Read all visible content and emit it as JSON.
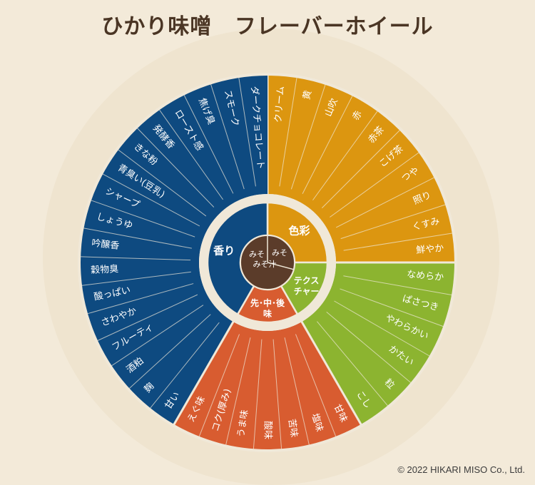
{
  "title": {
    "part1": "ひかり味噌",
    "part2": "フレーバーホイール"
  },
  "copyright": "© 2022 HIKARI MISO Co., Ltd.",
  "colors": {
    "aroma": "#0e4a80",
    "color": "#dc9610",
    "texture": "#8cb430",
    "taste": "#d85c30",
    "center": "#5b3c2a",
    "divider": "#f0e8d8"
  },
  "center": {
    "miso": "みそ",
    "misoshiru": "みそ\nみそ汁"
  },
  "wheel": [
    {
      "label": "色彩",
      "colorKey": "color",
      "span": 9,
      "items": [
        "クリーム",
        "黄",
        "山吹",
        "赤",
        "赤茶",
        "こげ茶",
        "つや",
        "照り",
        "くすみ",
        "鮮やか"
      ]
    },
    {
      "label": "テクス\nチャー",
      "colorKey": "texture",
      "span": 6,
      "items": [
        "なめらか",
        "ぱさつき",
        "やわらかい",
        "かたい",
        "粒",
        "こし"
      ]
    },
    {
      "label": "先･中･後\n味",
      "colorKey": "taste",
      "span": 6,
      "items": [
        "甘味",
        "塩味",
        "苦味",
        "酸味",
        "うま味",
        "コク(厚み)",
        "えぐ味"
      ]
    },
    {
      "label": "香り",
      "colorKey": "aroma",
      "span": 15,
      "items": [
        "甘い",
        "麹",
        "酒粕",
        "フルーティ",
        "さわやか",
        "酸っぱい",
        "穀物臭",
        "吟醸香",
        "しょうゆ",
        "シャープ",
        "青臭い(豆乳)",
        "きな粉",
        "発酵香",
        "ロースト感",
        "焦げ臭",
        "スモーク",
        "ダークチョコレート"
      ]
    }
  ]
}
